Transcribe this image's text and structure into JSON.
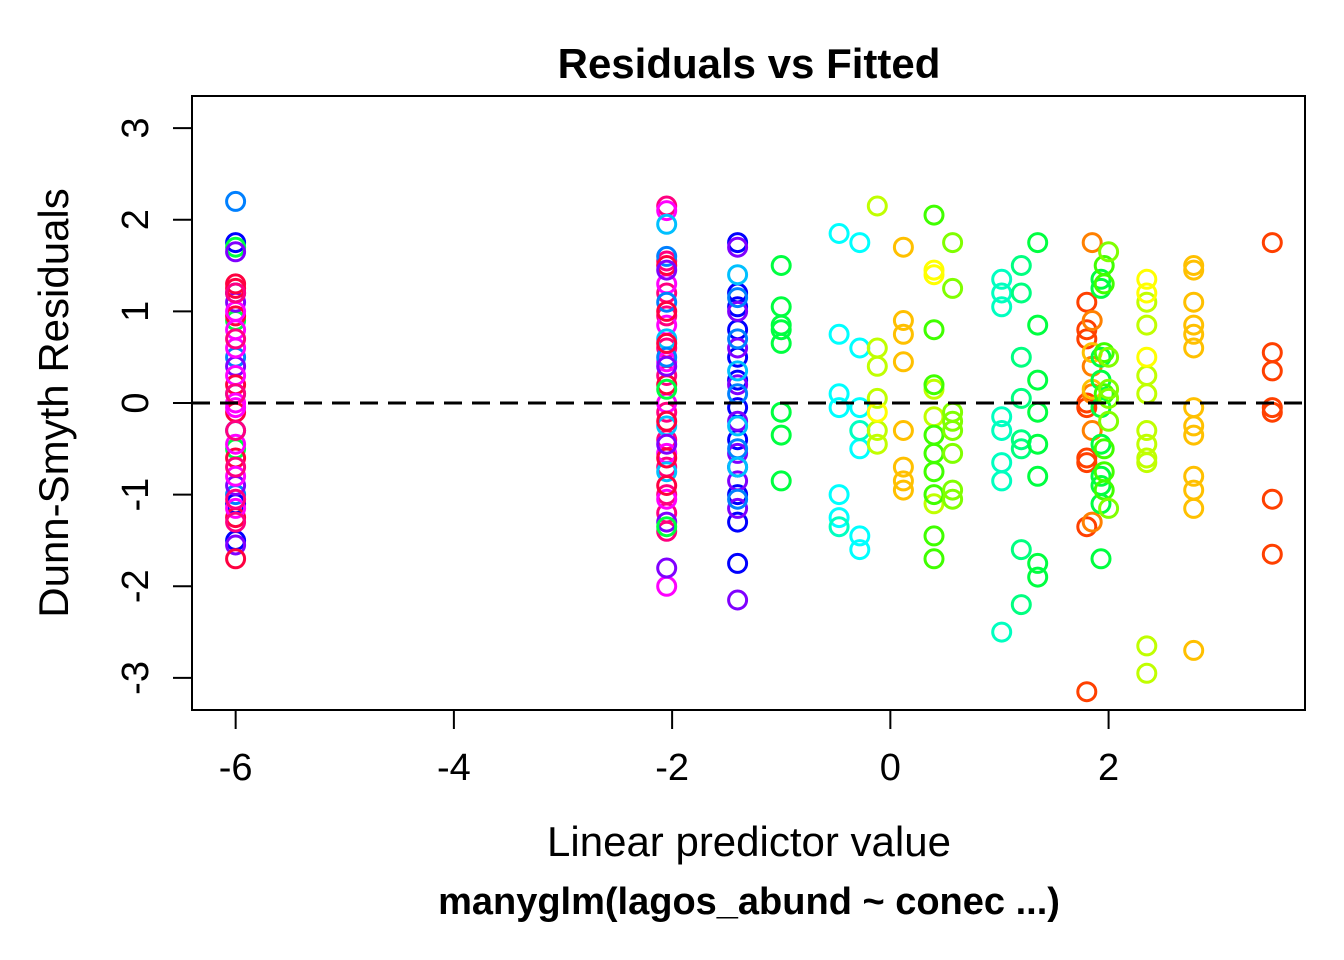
{
  "chart_data": {
    "type": "scatter",
    "title": "Residuals vs Fitted",
    "xlabel": "Linear predictor value",
    "ylabel": "Dunn-Smyth Residuals",
    "subtitle": "manyglm(lagos_abund ~ conec ...)",
    "xlim": [
      -6.4,
      3.8
    ],
    "ylim": [
      -3.35,
      3.35
    ],
    "xticks": [
      -6,
      -4,
      -2,
      0,
      2
    ],
    "xtick_labels": [
      "-6",
      "-4",
      "-2",
      "0",
      "2"
    ],
    "yticks": [
      -3,
      -2,
      -1,
      0,
      1,
      2,
      3
    ],
    "ytick_labels": [
      "-3",
      "-2",
      "-1",
      "0",
      "1",
      "2",
      "3"
    ],
    "reference_line": {
      "y": 0,
      "style": "dashed"
    },
    "grid": false,
    "marker": "open-circle",
    "series": [
      {
        "color": "#0080ff",
        "x": [
          -6,
          -6,
          -6,
          -6,
          -6
        ],
        "y": [
          2.2,
          0.5,
          -0.3,
          -1.0,
          0.1
        ]
      },
      {
        "color": "#0000ff",
        "x": [
          -6,
          -6,
          -6,
          -6
        ],
        "y": [
          1.75,
          1.2,
          -1.1,
          -1.5
        ]
      },
      {
        "color": "#00ff40",
        "x": [
          -6,
          -6,
          -6
        ],
        "y": [
          1.7,
          0.9,
          -0.5
        ]
      },
      {
        "color": "#8000ff",
        "x": [
          -6,
          -6,
          -6,
          -6,
          -6
        ],
        "y": [
          1.65,
          1.1,
          0.4,
          -0.9,
          -1.55
        ]
      },
      {
        "color": "#ff0040",
        "x": [
          -6,
          -6,
          -6,
          -6,
          -6,
          -6,
          -6,
          -6
        ],
        "y": [
          1.3,
          1.25,
          0.95,
          0.2,
          -0.1,
          -0.6,
          -1.25,
          -1.7
        ]
      },
      {
        "color": "#ff00ff",
        "x": [
          -6,
          -6,
          -6,
          -6,
          -6,
          -6,
          -6,
          -6,
          -6
        ],
        "y": [
          1.0,
          0.8,
          0.6,
          0.3,
          0.0,
          -0.05,
          -0.45,
          -0.8,
          -1.15
        ]
      },
      {
        "color": "#ff0080",
        "x": [
          -6,
          -6,
          -6,
          -6,
          -6,
          -6,
          -6
        ],
        "y": [
          1.2,
          0.7,
          0.1,
          -0.3,
          -0.7,
          -1.05,
          -1.3
        ]
      },
      {
        "color": "#ff0080",
        "x": [
          -2.05,
          -2.05,
          -2.05,
          -2.05,
          -2.05,
          -2.05,
          -2.05,
          -2.05,
          -2.05,
          -2.05,
          -2.05,
          -2.05
        ],
        "y": [
          2.15,
          1.55,
          1.2,
          0.95,
          0.6,
          0.3,
          -0.1,
          -0.4,
          -0.7,
          -1.0,
          -1.2,
          -1.4
        ]
      },
      {
        "color": "#ff00ff",
        "x": [
          -2.05,
          -2.05,
          -2.05,
          -2.05,
          -2.05,
          -2.05,
          -2.05,
          -2.05
        ],
        "y": [
          2.1,
          1.3,
          0.85,
          0.45,
          0.0,
          -0.55,
          -1.05,
          -2.0
        ]
      },
      {
        "color": "#00c0ff",
        "x": [
          -2.05,
          -2.05,
          -2.05,
          -2.05
        ],
        "y": [
          1.95,
          0.7,
          -0.25,
          -0.75
        ]
      },
      {
        "color": "#0080ff",
        "x": [
          -2.05,
          -2.05,
          -2.05
        ],
        "y": [
          1.6,
          1.1,
          0.5
        ]
      },
      {
        "color": "#ff0040",
        "x": [
          -2.05,
          -2.05,
          -2.05,
          -2.05,
          -2.05,
          -2.05,
          -2.05
        ],
        "y": [
          1.5,
          1.0,
          0.65,
          0.2,
          -0.2,
          -0.6,
          -0.9
        ]
      },
      {
        "color": "#8000ff",
        "x": [
          -2.05,
          -2.05,
          -2.05,
          -2.05,
          -2.05
        ],
        "y": [
          1.45,
          0.4,
          -0.45,
          -1.3,
          -1.8
        ]
      },
      {
        "color": "#00ff40",
        "x": [
          -2.05,
          -2.05
        ],
        "y": [
          0.15,
          -1.35
        ]
      },
      {
        "color": "#0000ff",
        "x": [
          -1.4,
          -1.4,
          -1.4,
          -1.4,
          -1.4,
          -1.4,
          -1.4,
          -1.4,
          -1.4,
          -1.4,
          -1.4,
          -1.4
        ],
        "y": [
          1.75,
          1.2,
          1.05,
          0.8,
          0.5,
          0.25,
          -0.05,
          -0.4,
          -0.7,
          -1.0,
          -1.3,
          -1.75
        ]
      },
      {
        "color": "#8000ff",
        "x": [
          -1.4,
          -1.4,
          -1.4,
          -1.4,
          -1.4,
          -1.4,
          -1.4,
          -1.4,
          -1.4
        ],
        "y": [
          1.7,
          1.0,
          0.6,
          0.2,
          -0.2,
          -0.55,
          -0.85,
          -1.15,
          -2.15
        ]
      },
      {
        "color": "#0080ff",
        "x": [
          -1.4,
          -1.4,
          -1.4,
          -1.4,
          -1.4
        ],
        "y": [
          1.15,
          0.7,
          0.1,
          -0.5,
          -1.05
        ]
      },
      {
        "color": "#00c0ff",
        "x": [
          -1.4,
          -1.4,
          -1.4,
          -1.4
        ],
        "y": [
          1.4,
          0.35,
          -0.25,
          -0.7
        ]
      },
      {
        "color": "#00ff40",
        "x": [
          -1.0,
          -1.0,
          -1.0,
          -1.0,
          -1.0,
          -1.0,
          -1.0,
          -1.0
        ],
        "y": [
          1.5,
          1.05,
          0.85,
          0.8,
          0.65,
          -0.1,
          -0.35,
          -0.85
        ]
      },
      {
        "color": "#00ffff",
        "x": [
          -0.47,
          -0.47,
          -0.47,
          -0.47,
          -0.47,
          -0.47,
          -0.28,
          -0.28,
          -0.28,
          -0.28,
          -0.28,
          -0.28
        ],
        "y": [
          1.85,
          0.75,
          0.1,
          -0.05,
          -1.0,
          -1.25,
          1.75,
          0.6,
          -0.05,
          -0.5,
          -1.45,
          -1.6
        ]
      },
      {
        "color": "#00ffc0",
        "x": [
          -0.47,
          -0.28
        ],
        "y": [
          -1.35,
          -0.3
        ]
      },
      {
        "color": "#c0ff00",
        "x": [
          -0.12,
          -0.12,
          -0.12,
          -0.12,
          -0.12,
          -0.12
        ],
        "y": [
          2.15,
          0.6,
          0.4,
          0.05,
          -0.3,
          -0.45
        ]
      },
      {
        "color": "#ffff00",
        "x": [
          -0.12,
          0.4,
          0.4
        ],
        "y": [
          -0.1,
          1.45,
          1.4
        ]
      },
      {
        "color": "#ffc000",
        "x": [
          0.12,
          0.12,
          0.12,
          0.12,
          0.12,
          0.12,
          0.12,
          0.12
        ],
        "y": [
          1.7,
          0.9,
          0.75,
          0.45,
          -0.3,
          -0.7,
          -0.85,
          -0.95
        ]
      },
      {
        "color": "#c0ff00",
        "x": [
          0.4,
          0.4,
          0.4
        ],
        "y": [
          0.15,
          -0.15,
          -1.1
        ]
      },
      {
        "color": "#40ff00",
        "x": [
          0.4,
          0.4,
          0.4,
          0.4,
          0.4,
          0.4,
          0.4,
          0.4,
          0.4
        ],
        "y": [
          2.05,
          0.8,
          0.2,
          -0.35,
          -0.55,
          -0.75,
          -1.0,
          -1.45,
          -1.7
        ]
      },
      {
        "color": "#80ff00",
        "x": [
          0.57,
          0.57,
          0.57,
          0.57,
          0.57,
          0.57,
          0.57,
          0.57
        ],
        "y": [
          1.75,
          1.25,
          -0.1,
          -0.3,
          -0.55,
          -0.95,
          -1.05,
          -0.2
        ]
      },
      {
        "color": "#00ffc0",
        "x": [
          1.02,
          1.02,
          1.02,
          1.02,
          1.02,
          1.02,
          1.02,
          1.02
        ],
        "y": [
          1.35,
          1.2,
          1.05,
          -0.15,
          -0.3,
          -0.65,
          -0.85,
          -2.5
        ]
      },
      {
        "color": "#00ff80",
        "x": [
          1.2,
          1.2,
          1.2,
          1.2,
          1.2,
          1.2,
          1.2,
          1.2
        ],
        "y": [
          1.5,
          1.2,
          0.5,
          0.05,
          -0.4,
          -0.5,
          -1.6,
          -2.2
        ]
      },
      {
        "color": "#00ff40",
        "x": [
          1.35,
          1.35,
          1.35,
          1.35,
          1.35,
          1.35,
          1.35,
          1.35
        ],
        "y": [
          1.75,
          0.85,
          0.25,
          -0.1,
          -0.45,
          -0.8,
          -1.75,
          -1.9
        ]
      },
      {
        "color": "#ff4000",
        "x": [
          1.8,
          1.8,
          1.8,
          1.8,
          1.8,
          1.8,
          1.8,
          1.8,
          1.8
        ],
        "y": [
          1.1,
          0.8,
          0.7,
          0.0,
          -0.05,
          -0.6,
          -0.65,
          -1.35,
          -3.15
        ]
      },
      {
        "color": "#ff8000",
        "x": [
          1.85,
          1.85,
          1.85,
          1.85,
          1.85,
          1.85
        ],
        "y": [
          1.75,
          0.9,
          0.4,
          0.1,
          -0.3,
          -1.3
        ]
      },
      {
        "color": "#ffc000",
        "x": [
          1.85,
          1.85
        ],
        "y": [
          0.15,
          0.55
        ]
      },
      {
        "color": "#00ff40",
        "x": [
          1.93,
          1.93,
          1.93,
          1.93,
          1.93,
          1.93,
          1.93,
          1.93,
          1.93,
          1.93
        ],
        "y": [
          1.35,
          1.25,
          0.5,
          0.25,
          -0.05,
          -0.45,
          -0.8,
          -0.9,
          -1.1,
          -1.7
        ]
      },
      {
        "color": "#40ff00",
        "x": [
          1.96,
          1.96,
          1.96,
          1.96,
          1.96,
          1.96,
          1.96
        ],
        "y": [
          1.5,
          1.3,
          0.55,
          0.1,
          -0.5,
          -0.75,
          -0.95
        ]
      },
      {
        "color": "#80ff00",
        "x": [
          2.0,
          2.0,
          2.0,
          2.0,
          2.0,
          2.0
        ],
        "y": [
          1.65,
          0.5,
          0.15,
          0.05,
          -0.2,
          -1.15
        ]
      },
      {
        "color": "#c0ff00",
        "x": [
          2.35,
          2.35,
          2.35,
          2.35,
          2.35,
          2.35,
          2.35,
          2.35,
          2.35,
          2.35
        ],
        "y": [
          1.1,
          0.85,
          0.3,
          0.1,
          -0.3,
          -0.45,
          -0.6,
          -0.65,
          -2.65,
          -2.95
        ]
      },
      {
        "color": "#ffff00",
        "x": [
          2.35,
          2.35,
          2.35
        ],
        "y": [
          1.35,
          1.2,
          0.5
        ]
      },
      {
        "color": "#ffc000",
        "x": [
          2.78,
          2.78,
          2.78,
          2.78,
          2.78,
          2.78,
          2.78,
          2.78,
          2.78,
          2.78,
          2.78,
          2.78
        ],
        "y": [
          1.5,
          1.45,
          1.1,
          0.85,
          0.75,
          0.6,
          -0.05,
          -0.25,
          -0.35,
          -0.8,
          -0.95,
          -1.15
        ]
      },
      {
        "color": "#ffc000",
        "x": [
          2.78
        ],
        "y": [
          -2.7
        ]
      },
      {
        "color": "#ff4000",
        "x": [
          3.5,
          3.5,
          3.5,
          3.5,
          3.5,
          3.5,
          3.5
        ],
        "y": [
          1.75,
          0.55,
          0.35,
          -0.05,
          -0.1,
          -1.05,
          -1.65
        ]
      }
    ]
  }
}
